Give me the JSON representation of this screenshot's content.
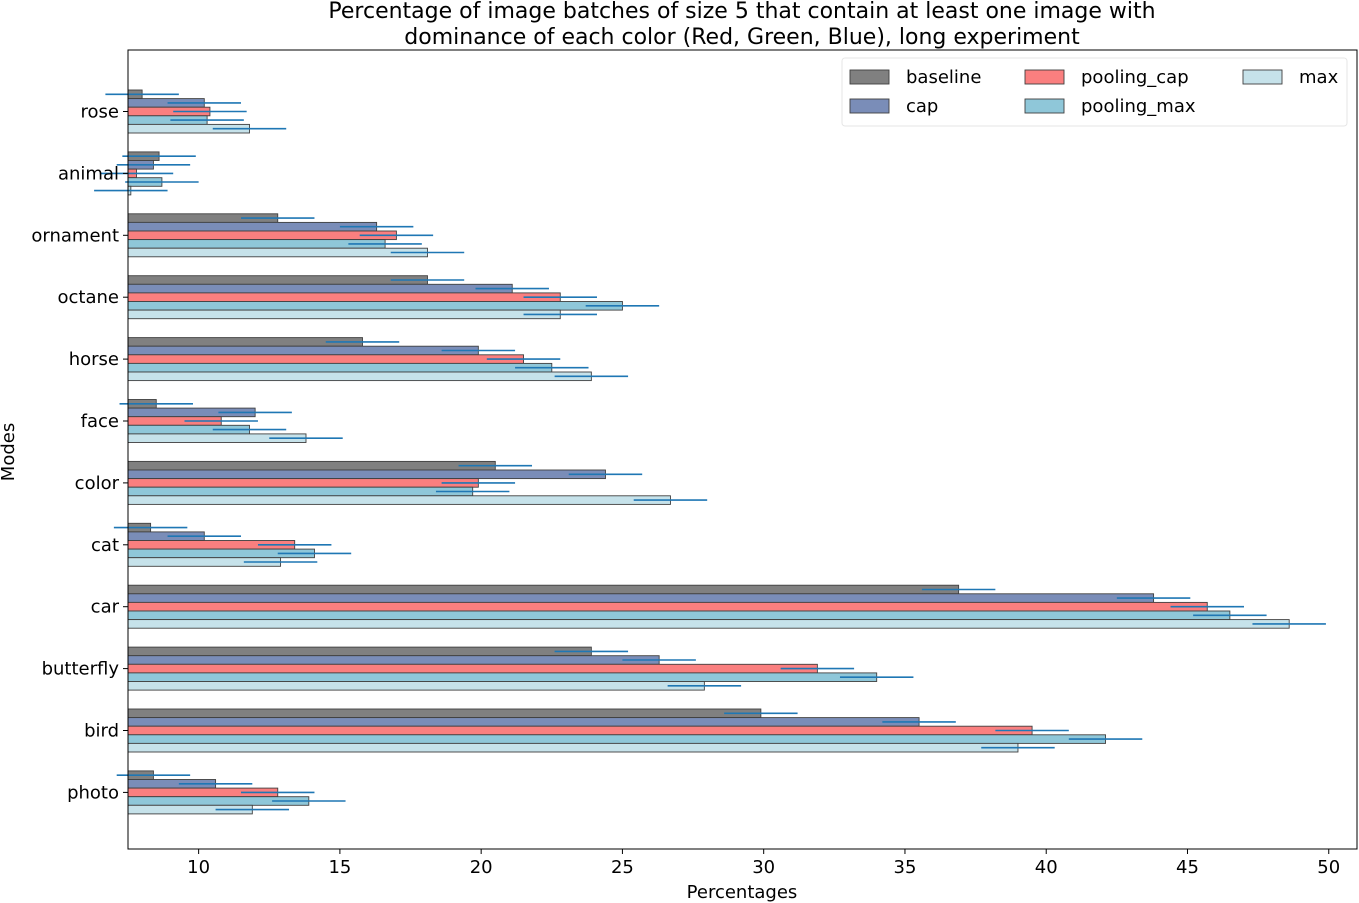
{
  "chart_data": {
    "type": "bar",
    "orientation": "horizontal",
    "title": "Percentage of image batches of size  5  that contain at least one image with dominance of each color (Red, Green, Blue), long experiment",
    "title_lines": [
      "Percentage of image batches of size  5  that contain at least one image with",
      "dominance of each color (Red, Green, Blue), long experiment"
    ],
    "xlabel": "Percentages",
    "ylabel": "Modes",
    "xlim": [
      7.5,
      51.0
    ],
    "xticks": [
      10,
      15,
      20,
      25,
      30,
      35,
      40,
      45,
      50
    ],
    "categories": [
      "rose",
      "animal",
      "ornament",
      "octane",
      "horse",
      "face",
      "color",
      "cat",
      "car",
      "butterfly",
      "bird",
      "photo"
    ],
    "series": [
      {
        "name": "baseline",
        "color": "#808080",
        "values": [
          8.0,
          8.6,
          12.8,
          18.1,
          15.8,
          8.5,
          20.5,
          8.3,
          36.9,
          23.9,
          29.9,
          8.4
        ],
        "errors": [
          1.3,
          1.3,
          1.3,
          1.3,
          1.3,
          1.3,
          1.3,
          1.3,
          1.3,
          1.3,
          1.3,
          1.3
        ]
      },
      {
        "name": "cap",
        "color": "#7a8db8",
        "values": [
          10.2,
          8.4,
          16.3,
          21.1,
          19.9,
          12.0,
          24.4,
          10.2,
          43.8,
          26.3,
          35.5,
          10.6
        ],
        "errors": [
          1.3,
          1.3,
          1.3,
          1.3,
          1.3,
          1.3,
          1.3,
          1.3,
          1.3,
          1.3,
          1.3,
          1.3
        ]
      },
      {
        "name": "pooling_cap",
        "color": "#fa7f7f",
        "values": [
          10.4,
          7.8,
          17.0,
          22.8,
          21.5,
          10.8,
          19.9,
          13.4,
          45.7,
          31.9,
          39.5,
          12.8
        ],
        "errors": [
          1.3,
          1.3,
          1.3,
          1.3,
          1.3,
          1.3,
          1.3,
          1.3,
          1.3,
          1.3,
          1.3,
          1.3
        ]
      },
      {
        "name": "pooling_max",
        "color": "#8fc7d9",
        "values": [
          10.3,
          8.7,
          16.6,
          25.0,
          22.5,
          11.8,
          19.7,
          14.1,
          46.5,
          34.0,
          42.1,
          13.9
        ],
        "errors": [
          1.3,
          1.3,
          1.3,
          1.3,
          1.3,
          1.3,
          1.3,
          1.3,
          1.3,
          1.3,
          1.3,
          1.3
        ]
      },
      {
        "name": "max",
        "color": "#c6e2ea",
        "values": [
          11.8,
          7.6,
          18.1,
          22.8,
          23.9,
          13.8,
          26.7,
          12.9,
          48.6,
          27.9,
          39.0,
          11.9
        ],
        "errors": [
          1.3,
          1.3,
          1.3,
          1.3,
          1.3,
          1.3,
          1.3,
          1.3,
          1.3,
          1.3,
          1.3,
          1.3
        ]
      }
    ],
    "legend_location": "top-right",
    "legend_columns": 3,
    "errorbar_color": "#1f77b4",
    "edge_color": "#404040"
  }
}
